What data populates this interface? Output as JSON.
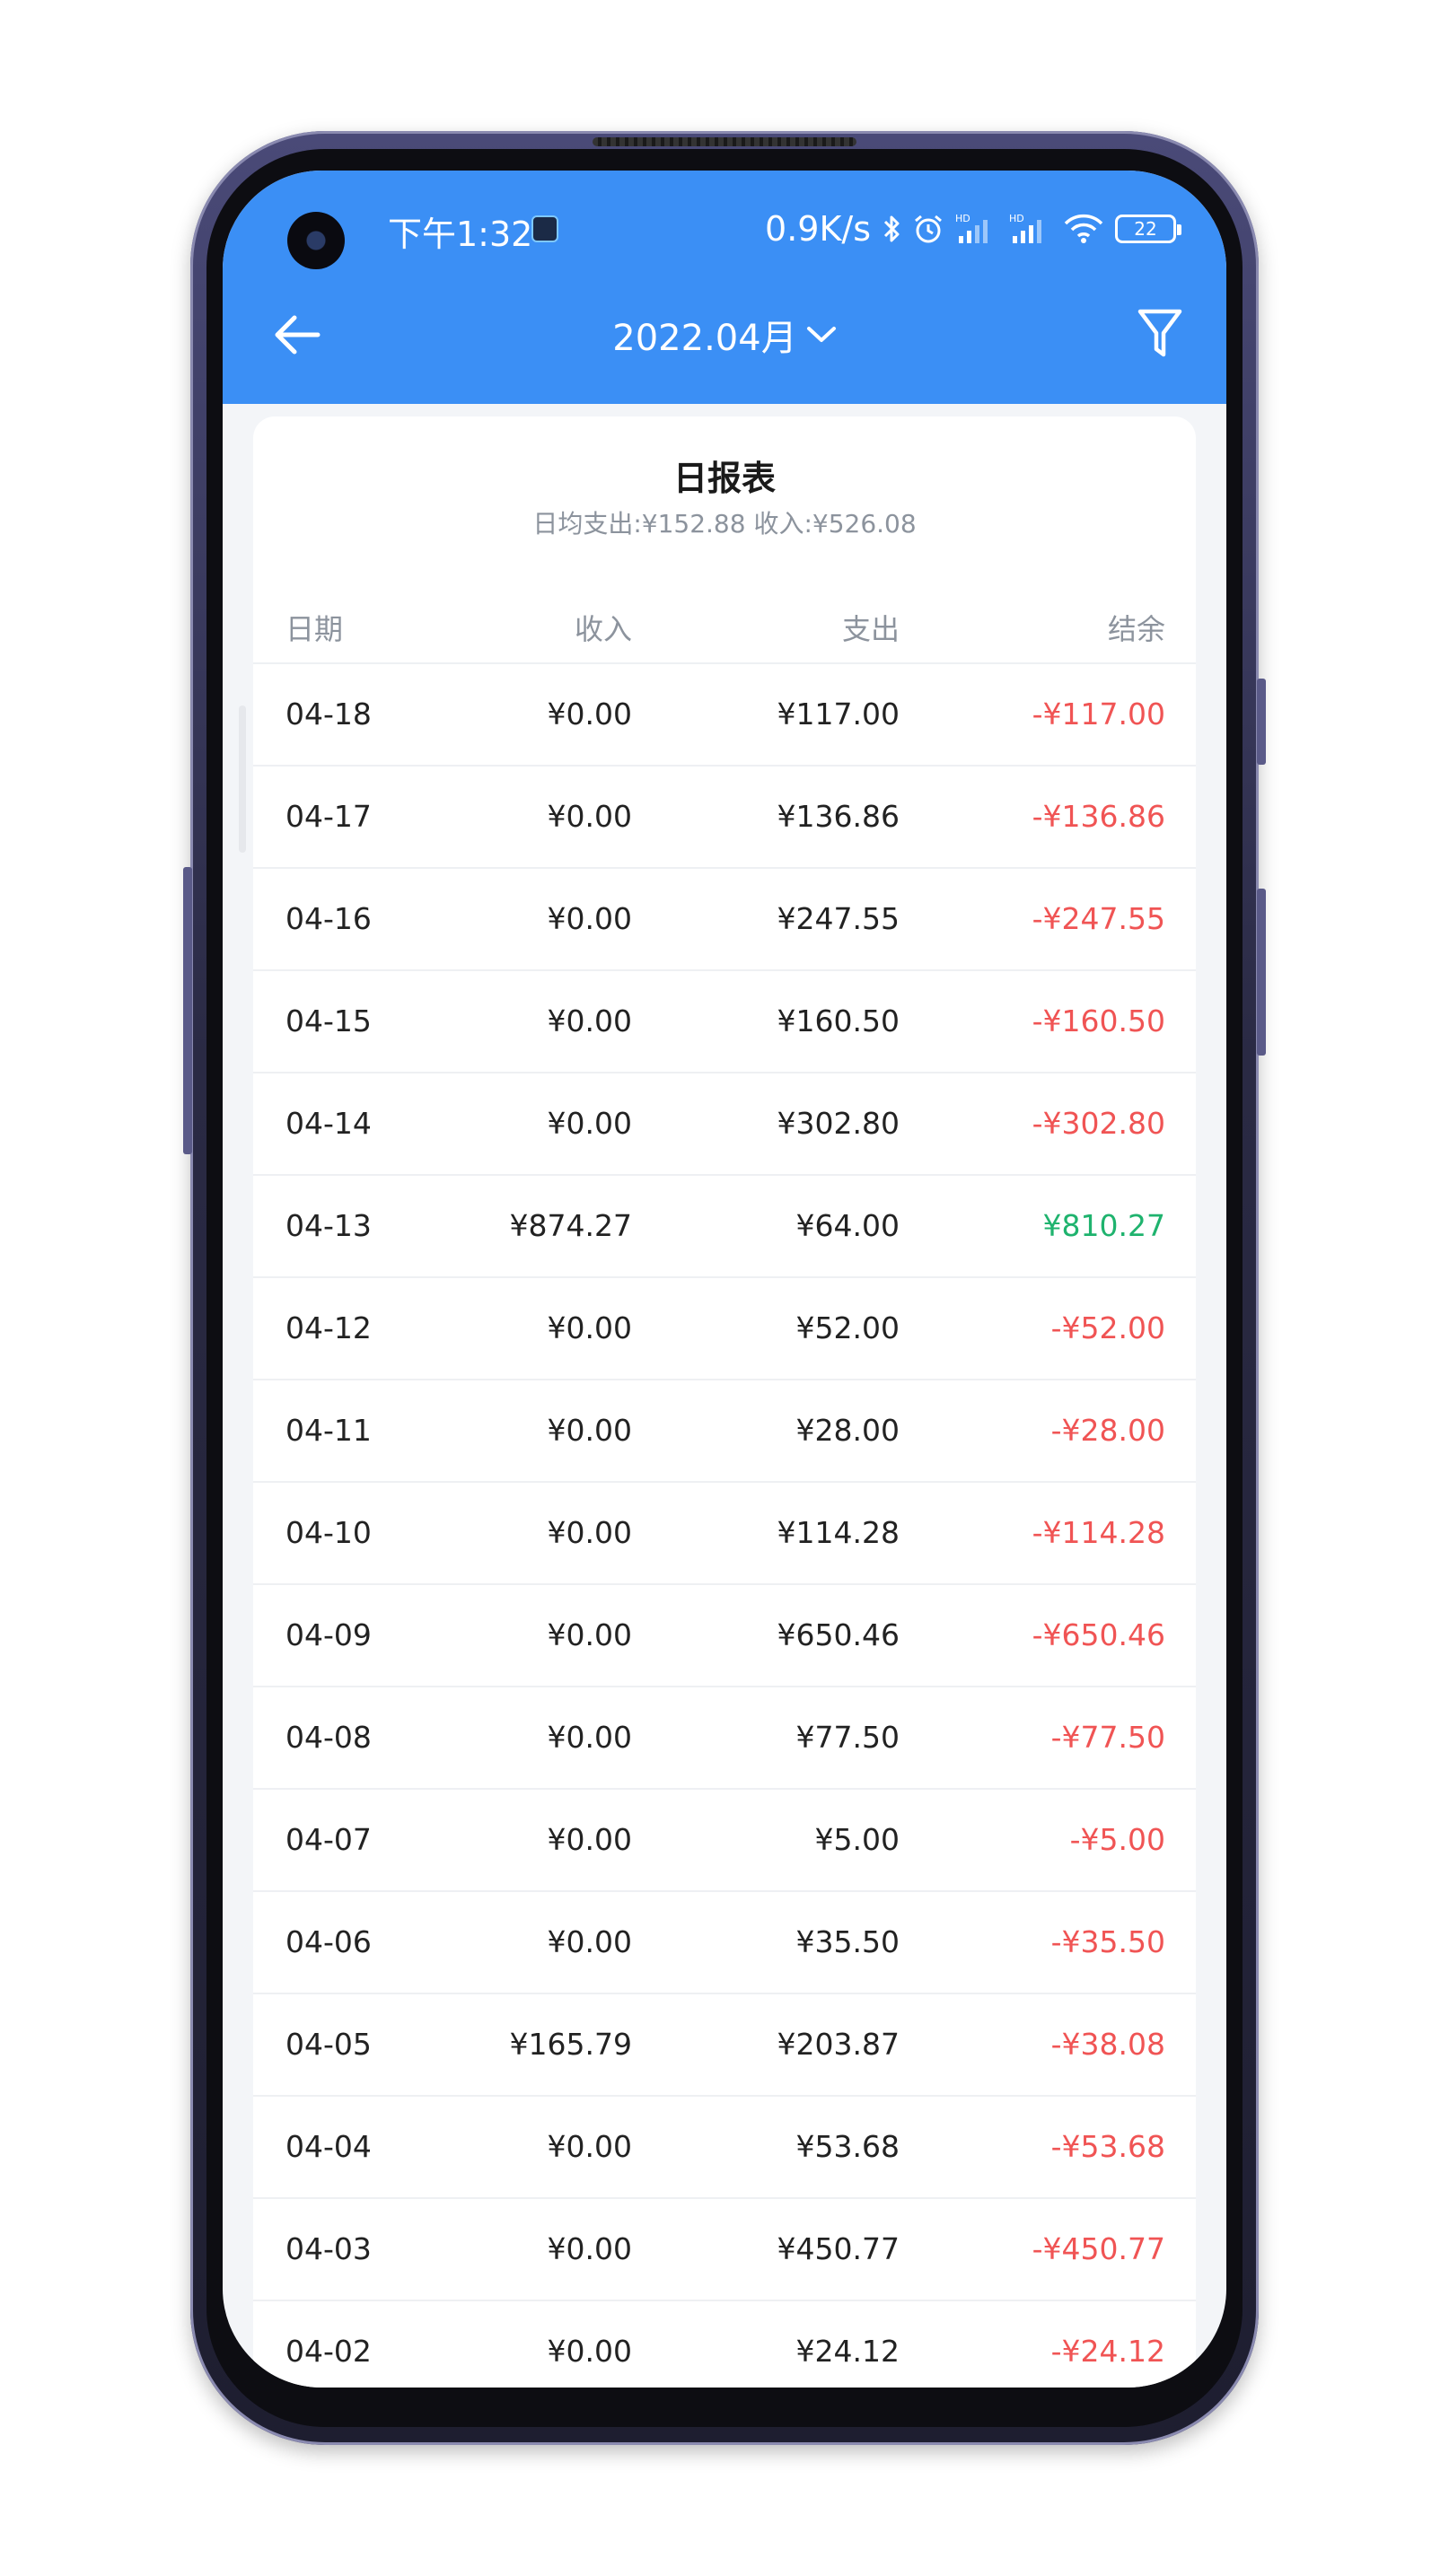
{
  "status_bar": {
    "time": "下午1:32",
    "net_speed": "0.9K/s",
    "battery": "22",
    "icons": [
      "bluetooth-icon",
      "alarm-icon",
      "signal-hd-icon",
      "signal-hd-icon",
      "wifi-icon",
      "battery-icon"
    ]
  },
  "nav": {
    "title": "2022.04月",
    "back_icon": "arrow-left-icon",
    "dropdown_icon": "chevron-down-icon",
    "filter_icon": "filter-icon"
  },
  "report": {
    "title": "日报表",
    "subtitle": "日均支出:¥152.88 收入:¥526.08",
    "columns": {
      "date": "日期",
      "income": "收入",
      "expense": "支出",
      "balance": "结余"
    },
    "rows": [
      {
        "date": "04-18",
        "income": "¥0.00",
        "expense": "¥117.00",
        "balance": "-¥117.00",
        "sign": "neg"
      },
      {
        "date": "04-17",
        "income": "¥0.00",
        "expense": "¥136.86",
        "balance": "-¥136.86",
        "sign": "neg"
      },
      {
        "date": "04-16",
        "income": "¥0.00",
        "expense": "¥247.55",
        "balance": "-¥247.55",
        "sign": "neg"
      },
      {
        "date": "04-15",
        "income": "¥0.00",
        "expense": "¥160.50",
        "balance": "-¥160.50",
        "sign": "neg"
      },
      {
        "date": "04-14",
        "income": "¥0.00",
        "expense": "¥302.80",
        "balance": "-¥302.80",
        "sign": "neg"
      },
      {
        "date": "04-13",
        "income": "¥874.27",
        "expense": "¥64.00",
        "balance": "¥810.27",
        "sign": "pos"
      },
      {
        "date": "04-12",
        "income": "¥0.00",
        "expense": "¥52.00",
        "balance": "-¥52.00",
        "sign": "neg"
      },
      {
        "date": "04-11",
        "income": "¥0.00",
        "expense": "¥28.00",
        "balance": "-¥28.00",
        "sign": "neg"
      },
      {
        "date": "04-10",
        "income": "¥0.00",
        "expense": "¥114.28",
        "balance": "-¥114.28",
        "sign": "neg"
      },
      {
        "date": "04-09",
        "income": "¥0.00",
        "expense": "¥650.46",
        "balance": "-¥650.46",
        "sign": "neg"
      },
      {
        "date": "04-08",
        "income": "¥0.00",
        "expense": "¥77.50",
        "balance": "-¥77.50",
        "sign": "neg"
      },
      {
        "date": "04-07",
        "income": "¥0.00",
        "expense": "¥5.00",
        "balance": "-¥5.00",
        "sign": "neg"
      },
      {
        "date": "04-06",
        "income": "¥0.00",
        "expense": "¥35.50",
        "balance": "-¥35.50",
        "sign": "neg"
      },
      {
        "date": "04-05",
        "income": "¥165.79",
        "expense": "¥203.87",
        "balance": "-¥38.08",
        "sign": "neg"
      },
      {
        "date": "04-04",
        "income": "¥0.00",
        "expense": "¥53.68",
        "balance": "-¥53.68",
        "sign": "neg"
      },
      {
        "date": "04-03",
        "income": "¥0.00",
        "expense": "¥450.77",
        "balance": "-¥450.77",
        "sign": "neg"
      },
      {
        "date": "04-02",
        "income": "¥0.00",
        "expense": "¥24.12",
        "balance": "-¥24.12",
        "sign": "neg"
      }
    ]
  },
  "colors": {
    "header_blue": "#3b8ff5",
    "negative": "#f05454",
    "positive": "#1fb36e",
    "background": "#f3f5f8"
  }
}
